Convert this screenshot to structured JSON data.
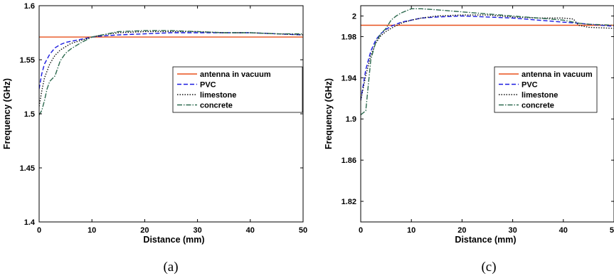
{
  "chart_data": [
    {
      "type": "line",
      "caption": "(a)",
      "xlabel": "Distance (mm)",
      "ylabel": "Frequency  (GHz)",
      "xlim": [
        0,
        50
      ],
      "ylim": [
        1.4,
        1.6
      ],
      "xticks": [
        0,
        10,
        20,
        30,
        40,
        50
      ],
      "yticks": [
        1.4,
        1.45,
        1.5,
        1.55,
        1.6
      ],
      "ytick_labels": [
        "1.4",
        "1.45",
        "1.5",
        "1.55",
        "1.6"
      ],
      "legend_position": "right",
      "series": [
        {
          "name": "antenna in vacuum",
          "color": "#e8501c",
          "style": "solid",
          "x": [
            0,
            50
          ],
          "y": [
            1.571,
            1.571
          ]
        },
        {
          "name": "PVC",
          "color": "#1a1ae0",
          "style": "dashed",
          "x": [
            0,
            0.5,
            1,
            2,
            3,
            4,
            5,
            6,
            8,
            10,
            12,
            15,
            20,
            25,
            30,
            35,
            40,
            45,
            50
          ],
          "y": [
            1.523,
            1.537,
            1.546,
            1.555,
            1.561,
            1.564,
            1.566,
            1.567,
            1.569,
            1.571,
            1.572,
            1.573,
            1.574,
            1.575,
            1.575,
            1.575,
            1.575,
            1.574,
            1.573
          ]
        },
        {
          "name": "limestone",
          "color": "#111111",
          "style": "dotted",
          "x": [
            0,
            0.5,
            1,
            2,
            3,
            4,
            5,
            6,
            8,
            10,
            12,
            15,
            20,
            25,
            30,
            35,
            40,
            45,
            50
          ],
          "y": [
            1.507,
            1.521,
            1.533,
            1.546,
            1.554,
            1.559,
            1.562,
            1.565,
            1.568,
            1.571,
            1.573,
            1.575,
            1.576,
            1.576,
            1.576,
            1.575,
            1.575,
            1.574,
            1.573
          ]
        },
        {
          "name": "concrete",
          "color": "#2d6a4f",
          "style": "dashdot",
          "x": [
            0,
            0.5,
            1,
            1.5,
            2,
            3,
            4,
            5,
            6,
            8,
            10,
            12,
            15,
            20,
            25,
            30,
            35,
            40,
            45,
            50
          ],
          "y": [
            1.499,
            1.503,
            1.512,
            1.523,
            1.53,
            1.535,
            1.549,
            1.556,
            1.56,
            1.566,
            1.571,
            1.573,
            1.576,
            1.577,
            1.577,
            1.576,
            1.575,
            1.575,
            1.574,
            1.574
          ]
        }
      ]
    },
    {
      "type": "line",
      "caption": "(c)",
      "xlabel": "Distance (mm)",
      "ylabel": "Frequency  (GHz)",
      "xlim": [
        0,
        50
      ],
      "ylim": [
        1.8,
        2.01
      ],
      "xticks": [
        0,
        10,
        20,
        30,
        40,
        50
      ],
      "yticks": [
        1.82,
        1.86,
        1.9,
        1.94,
        1.98,
        2.0
      ],
      "ytick_labels": [
        "1.82",
        "1.86",
        "1.9",
        "1.94",
        "1.98",
        "2"
      ],
      "legend_position": "right",
      "series": [
        {
          "name": "antenna in vacuum",
          "color": "#e8501c",
          "style": "solid",
          "x": [
            0,
            50
          ],
          "y": [
            1.991,
            1.991
          ]
        },
        {
          "name": "PVC",
          "color": "#1a1ae0",
          "style": "dashed",
          "x": [
            0,
            1,
            2,
            3,
            4,
            5,
            6,
            8,
            10,
            12,
            15,
            20,
            25,
            30,
            35,
            40,
            43,
            45,
            50
          ],
          "y": [
            1.918,
            1.948,
            1.966,
            1.977,
            1.983,
            1.987,
            1.99,
            1.994,
            1.996,
            1.998,
            1.999,
            2.0,
            1.999,
            1.998,
            1.996,
            1.994,
            1.993,
            1.992,
            1.99
          ]
        },
        {
          "name": "limestone",
          "color": "#111111",
          "style": "dotted",
          "x": [
            0,
            1,
            2,
            3,
            4,
            5,
            6,
            8,
            10,
            12,
            15,
            20,
            25,
            30,
            35,
            40,
            42,
            43,
            45,
            50
          ],
          "y": [
            1.918,
            1.942,
            1.962,
            1.974,
            1.981,
            1.985,
            1.988,
            1.993,
            1.996,
            1.998,
            2.0,
            2.001,
            2.001,
            1.999,
            1.998,
            1.998,
            1.997,
            1.991,
            1.989,
            1.988
          ]
        },
        {
          "name": "concrete",
          "color": "#2d6a4f",
          "style": "dashdot",
          "x": [
            0,
            1,
            2,
            3,
            4,
            5,
            6,
            7,
            8,
            9,
            10,
            12,
            15,
            20,
            25,
            30,
            35,
            40,
            43,
            45,
            50
          ],
          "y": [
            1.904,
            1.908,
            1.958,
            1.975,
            1.983,
            1.988,
            1.996,
            2.0,
            2.003,
            2.005,
            2.007,
            2.007,
            2.006,
            2.004,
            2.002,
            2.0,
            1.998,
            1.996,
            1.993,
            1.992,
            1.991
          ]
        }
      ]
    }
  ]
}
